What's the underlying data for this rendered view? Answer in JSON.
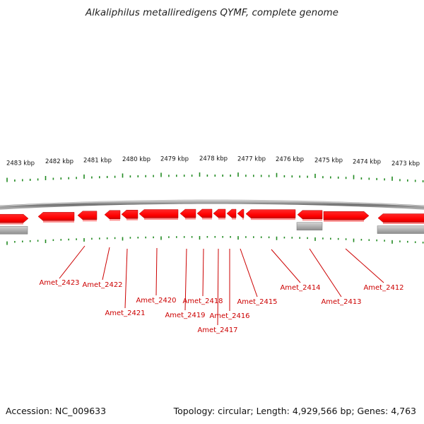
{
  "title": "Alkaliphilus metalliredigens QYMF, complete genome",
  "footer": {
    "accession": "Accession: NC_009633",
    "summary": "Topology: circular; Length: 4,929,566 bp; Genes: 4,763"
  },
  "colors": {
    "gene_forward": "#ff0000",
    "gene_reverse_gray": "#9a9a9a",
    "backbone": "#7a7a7a",
    "tick": "#228b22",
    "label": "#cc0000"
  },
  "scale_labels": [
    "2483 kbp",
    "2482 kbp",
    "2481 kbp",
    "2480 kbp",
    "2479 kbp",
    "2478 kbp",
    "2477 kbp",
    "2476 kbp",
    "2475 kbp",
    "2474 kbp",
    "2473 kbp"
  ],
  "gene_labels": [
    "Amet_2423",
    "Amet_2422",
    "Amet_2421",
    "Amet_2420",
    "Amet_2419",
    "Amet_2418",
    "Amet_2417",
    "Amet_2416",
    "Amet_2415",
    "Amet_2414",
    "Amet_2413",
    "Amet_2412"
  ]
}
